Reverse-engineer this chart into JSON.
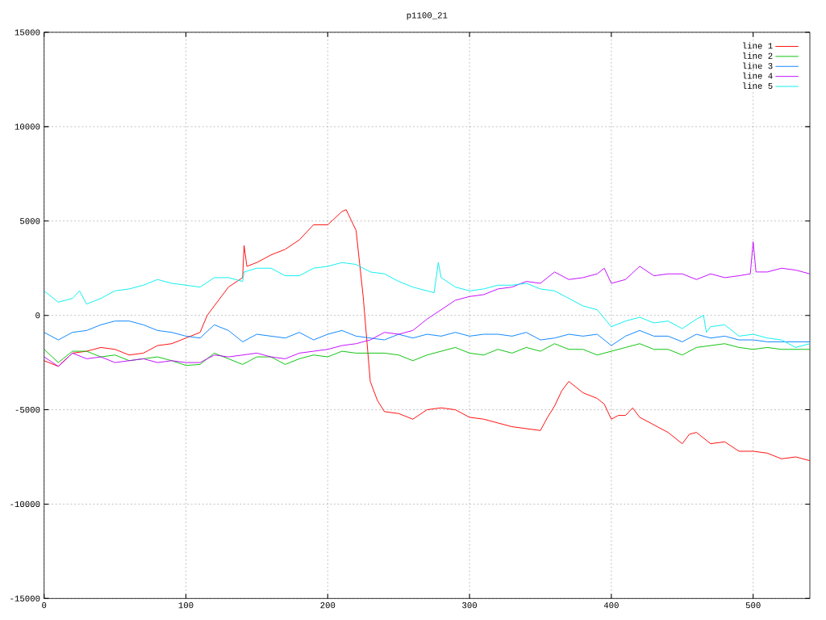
{
  "chart_data": {
    "type": "line",
    "title": "p1100_21",
    "xlim": [
      0,
      540
    ],
    "ylim": [
      -15000,
      15000
    ],
    "xticks": [
      0,
      100,
      200,
      300,
      400,
      500
    ],
    "yticks": [
      -15000,
      -10000,
      -5000,
      0,
      5000,
      10000,
      15000
    ],
    "grid": true,
    "legend": "top right",
    "line_style": "solid",
    "marker": "none",
    "series": [
      {
        "name": "line 1",
        "color": "#ff0000",
        "x": [
          0,
          10,
          20,
          30,
          40,
          50,
          60,
          70,
          80,
          90,
          100,
          110,
          115,
          120,
          130,
          140,
          141,
          143,
          150,
          160,
          170,
          180,
          190,
          200,
          210,
          213,
          220,
          225,
          230,
          235,
          240,
          250,
          260,
          270,
          280,
          290,
          300,
          310,
          320,
          330,
          340,
          350,
          355,
          360,
          365,
          370,
          375,
          380,
          390,
          395,
          400,
          405,
          410,
          415,
          420,
          430,
          440,
          450,
          455,
          460,
          470,
          480,
          490,
          500,
          510,
          520,
          530,
          540
        ],
        "values": [
          -2400,
          -2700,
          -2000,
          -1900,
          -1700,
          -1800,
          -2100,
          -2000,
          -1600,
          -1500,
          -1200,
          -900,
          0,
          500,
          1500,
          2000,
          3700,
          2600,
          2800,
          3200,
          3500,
          4000,
          4800,
          4800,
          5500,
          5600,
          4500,
          1000,
          -3500,
          -4500,
          -5100,
          -5200,
          -5500,
          -5000,
          -4900,
          -5000,
          -5400,
          -5500,
          -5700,
          -5900,
          -6000,
          -6100,
          -5400,
          -4800,
          -4000,
          -3500,
          -3800,
          -4100,
          -4400,
          -4700,
          -5500,
          -5300,
          -5300,
          -4900,
          -5400,
          -5800,
          -6200,
          -6800,
          -6300,
          -6200,
          -6800,
          -6700,
          -7200,
          -7200,
          -7300,
          -7600,
          -7500,
          -7700
        ]
      },
      {
        "name": "line 2",
        "color": "#00c000",
        "x": [
          0,
          10,
          20,
          30,
          40,
          50,
          60,
          70,
          80,
          90,
          100,
          110,
          120,
          130,
          140,
          150,
          160,
          170,
          180,
          190,
          200,
          210,
          220,
          230,
          240,
          250,
          260,
          270,
          280,
          290,
          300,
          310,
          320,
          330,
          340,
          350,
          360,
          370,
          380,
          390,
          400,
          410,
          420,
          430,
          440,
          450,
          460,
          470,
          480,
          490,
          500,
          510,
          520,
          530,
          540
        ],
        "values": [
          -1800,
          -2500,
          -1900,
          -1900,
          -2200,
          -2100,
          -2400,
          -2300,
          -2200,
          -2400,
          -2650,
          -2600,
          -2000,
          -2300,
          -2600,
          -2200,
          -2200,
          -2600,
          -2300,
          -2100,
          -2200,
          -1900,
          -2000,
          -2000,
          -2000,
          -2100,
          -2400,
          -2100,
          -1900,
          -1700,
          -2000,
          -2100,
          -1800,
          -2000,
          -1700,
          -1900,
          -1500,
          -1800,
          -1800,
          -2100,
          -1900,
          -1700,
          -1500,
          -1800,
          -1800,
          -2100,
          -1700,
          -1600,
          -1500,
          -1700,
          -1800,
          -1700,
          -1800,
          -1800,
          -1800
        ]
      },
      {
        "name": "line 3",
        "color": "#0080ff",
        "x": [
          0,
          10,
          20,
          30,
          40,
          50,
          60,
          70,
          80,
          90,
          100,
          110,
          120,
          130,
          140,
          150,
          160,
          170,
          180,
          190,
          200,
          210,
          220,
          230,
          240,
          250,
          260,
          270,
          280,
          290,
          300,
          310,
          320,
          330,
          340,
          350,
          360,
          370,
          380,
          390,
          400,
          410,
          420,
          430,
          440,
          450,
          460,
          470,
          480,
          490,
          500,
          510,
          520,
          530,
          540
        ],
        "values": [
          -900,
          -1300,
          -900,
          -800,
          -500,
          -300,
          -300,
          -500,
          -800,
          -900,
          -1100,
          -1200,
          -500,
          -800,
          -1400,
          -1000,
          -1100,
          -1200,
          -900,
          -1300,
          -1000,
          -800,
          -1100,
          -1200,
          -1300,
          -1000,
          -1200,
          -1000,
          -1100,
          -900,
          -1100,
          -1000,
          -1000,
          -1100,
          -900,
          -1300,
          -1200,
          -1000,
          -1100,
          -1000,
          -1600,
          -1100,
          -800,
          -1100,
          -1100,
          -1400,
          -1000,
          -1200,
          -1100,
          -1300,
          -1300,
          -1400,
          -1400,
          -1400,
          -1400
        ]
      },
      {
        "name": "line 4",
        "color": "#c000ff",
        "x": [
          0,
          10,
          20,
          30,
          40,
          50,
          60,
          70,
          80,
          90,
          100,
          110,
          120,
          130,
          140,
          150,
          160,
          170,
          180,
          190,
          200,
          210,
          220,
          230,
          240,
          250,
          260,
          270,
          280,
          290,
          300,
          310,
          320,
          330,
          340,
          350,
          360,
          370,
          380,
          390,
          395,
          400,
          410,
          420,
          430,
          440,
          450,
          460,
          470,
          480,
          490,
          498,
          500,
          502,
          510,
          520,
          530,
          540
        ],
        "values": [
          -2200,
          -2700,
          -2000,
          -2300,
          -2200,
          -2500,
          -2400,
          -2300,
          -2500,
          -2400,
          -2500,
          -2500,
          -2100,
          -2200,
          -2100,
          -2000,
          -2200,
          -2300,
          -2000,
          -1900,
          -1800,
          -1600,
          -1500,
          -1300,
          -900,
          -1000,
          -800,
          -200,
          300,
          800,
          1000,
          1100,
          1400,
          1500,
          1800,
          1700,
          2300,
          1900,
          2000,
          2200,
          2500,
          1700,
          1900,
          2600,
          2100,
          2200,
          2200,
          1900,
          2200,
          2000,
          2100,
          2200,
          3900,
          2300,
          2300,
          2500,
          2400,
          2200
        ]
      },
      {
        "name": "line 5",
        "color": "#00eeee",
        "x": [
          0,
          10,
          20,
          25,
          30,
          40,
          50,
          60,
          70,
          80,
          90,
          100,
          110,
          120,
          130,
          140,
          141,
          150,
          160,
          170,
          180,
          190,
          200,
          210,
          220,
          230,
          240,
          250,
          260,
          270,
          275,
          278,
          280,
          290,
          300,
          310,
          320,
          330,
          340,
          350,
          360,
          370,
          380,
          390,
          400,
          410,
          420,
          430,
          440,
          450,
          460,
          465,
          467,
          470,
          480,
          490,
          500,
          510,
          520,
          530,
          540
        ],
        "values": [
          1300,
          700,
          900,
          1300,
          600,
          900,
          1300,
          1400,
          1600,
          1900,
          1700,
          1600,
          1500,
          2000,
          2000,
          1800,
          2300,
          2500,
          2500,
          2100,
          2100,
          2500,
          2600,
          2800,
          2700,
          2300,
          2200,
          1800,
          1500,
          1300,
          1200,
          2800,
          2000,
          1500,
          1300,
          1400,
          1600,
          1600,
          1700,
          1400,
          1300,
          900,
          500,
          300,
          -600,
          -300,
          -100,
          -400,
          -300,
          -700,
          -200,
          0,
          -900,
          -600,
          -500,
          -1100,
          -1000,
          -1200,
          -1300,
          -1700,
          -1500
        ]
      }
    ]
  }
}
